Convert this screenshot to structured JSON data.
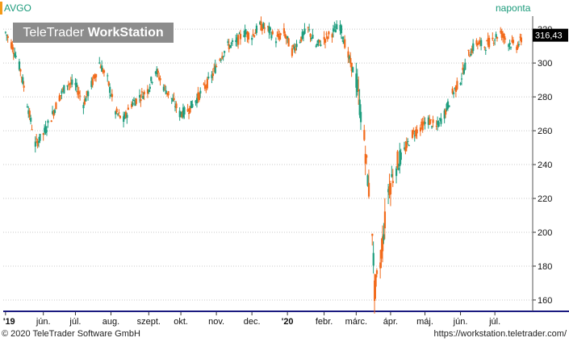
{
  "header": {
    "ticker": "AVGO",
    "period": "naponta"
  },
  "watermark": {
    "brand_regular": "TeleTrader",
    "brand_bold": "WorkStation"
  },
  "footer": {
    "copyright": "© 2020 TeleTrader Software GmbH",
    "website": "https://workstation.teletrader.com/"
  },
  "colors": {
    "up": "#1f9e7f",
    "down": "#f26a1b",
    "accent": "#f39a1a",
    "grid": "#c8c8c8",
    "axis": "#1a1a80"
  },
  "chart_data": {
    "type": "candlestick",
    "title": "AVGO",
    "ylim": [
      150,
      330
    ],
    "y_ticks": [
      160,
      180,
      200,
      220,
      240,
      260,
      280,
      300,
      320
    ],
    "y_tick_labels": [
      "160",
      "180",
      "200",
      "220",
      "240",
      "260",
      "280",
      "300",
      "320"
    ],
    "x_tick_labels": [
      "'19",
      "jún.",
      "júl.",
      "aug.",
      "szept.",
      "okt.",
      "nov.",
      "dec.",
      "'20",
      "febr.",
      "márc.",
      "ápr.",
      "máj.",
      "jún.",
      "júl."
    ],
    "last_price_label": "316,43",
    "last_price": 316.43,
    "grid": true,
    "close_path": [
      [
        "2019-05-01",
        318
      ],
      [
        "2019-05-07",
        310
      ],
      [
        "2019-05-14",
        296
      ],
      [
        "2019-05-20",
        276
      ],
      [
        "2019-05-27",
        252
      ],
      [
        "2019-06-03",
        258
      ],
      [
        "2019-06-10",
        268
      ],
      [
        "2019-06-17",
        280
      ],
      [
        "2019-06-24",
        288
      ],
      [
        "2019-07-01",
        287
      ],
      [
        "2019-07-08",
        276
      ],
      [
        "2019-07-15",
        287
      ],
      [
        "2019-07-22",
        300
      ],
      [
        "2019-07-29",
        290
      ],
      [
        "2019-08-05",
        271
      ],
      [
        "2019-08-12",
        266
      ],
      [
        "2019-08-19",
        276
      ],
      [
        "2019-08-26",
        280
      ],
      [
        "2019-09-02",
        284
      ],
      [
        "2019-09-09",
        296
      ],
      [
        "2019-09-16",
        286
      ],
      [
        "2019-09-23",
        279
      ],
      [
        "2019-09-30",
        270
      ],
      [
        "2019-10-07",
        272
      ],
      [
        "2019-10-14",
        278
      ],
      [
        "2019-10-21",
        285
      ],
      [
        "2019-10-28",
        292
      ],
      [
        "2019-11-04",
        303
      ],
      [
        "2019-11-11",
        310
      ],
      [
        "2019-11-18",
        312
      ],
      [
        "2019-11-25",
        318
      ],
      [
        "2019-12-02",
        316
      ],
      [
        "2019-12-09",
        322
      ],
      [
        "2019-12-16",
        320
      ],
      [
        "2019-12-23",
        314
      ],
      [
        "2019-12-30",
        318
      ],
      [
        "2020-01-06",
        307
      ],
      [
        "2020-01-13",
        314
      ],
      [
        "2020-01-20",
        320
      ],
      [
        "2020-01-27",
        310
      ],
      [
        "2020-02-03",
        314
      ],
      [
        "2020-02-10",
        318
      ],
      [
        "2020-02-17",
        322
      ],
      [
        "2020-02-24",
        304
      ],
      [
        "2020-03-02",
        290
      ],
      [
        "2020-03-09",
        255
      ],
      [
        "2020-03-16",
        202
      ],
      [
        "2020-03-18",
        165
      ],
      [
        "2020-03-23",
        182
      ],
      [
        "2020-03-30",
        225
      ],
      [
        "2020-04-06",
        240
      ],
      [
        "2020-04-13",
        248
      ],
      [
        "2020-04-20",
        258
      ],
      [
        "2020-04-27",
        262
      ],
      [
        "2020-05-04",
        266
      ],
      [
        "2020-05-11",
        262
      ],
      [
        "2020-05-18",
        270
      ],
      [
        "2020-05-25",
        282
      ],
      [
        "2020-06-01",
        290
      ],
      [
        "2020-06-08",
        305
      ],
      [
        "2020-06-15",
        312
      ],
      [
        "2020-06-22",
        310
      ],
      [
        "2020-06-29",
        314
      ],
      [
        "2020-07-06",
        318
      ],
      [
        "2020-07-13",
        312
      ],
      [
        "2020-07-20",
        310
      ],
      [
        "2020-07-27",
        316
      ]
    ]
  }
}
